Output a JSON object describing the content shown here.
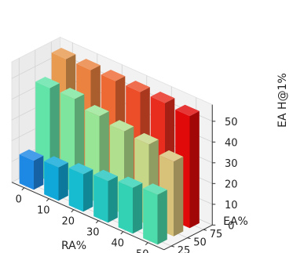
{
  "chart_data": {
    "type": "bar3d",
    "title": "",
    "xlabel": "RA%",
    "ylabel": "EA%",
    "zlabel": "EA H@1%",
    "x_ticks": [
      "0",
      "10",
      "20",
      "30",
      "40",
      "50"
    ],
    "y_ticks": [
      "25",
      "50",
      "75"
    ],
    "z_ticks": [
      "0",
      "10",
      "20",
      "30",
      "40",
      "50"
    ],
    "zlim": [
      0,
      58
    ],
    "grid": true,
    "series": [
      {
        "ea": 25,
        "x": [
          0,
          10,
          20,
          30,
          40,
          50
        ],
        "values": [
          14,
          16,
          18,
          20,
          22,
          24
        ],
        "colors": [
          "#1e88e5",
          "#10a8d8",
          "#18bcd0",
          "#26c6c0",
          "#34d2b4",
          "#4ddcab"
        ]
      },
      {
        "ea": 50,
        "x": [
          0,
          10,
          20,
          30,
          40,
          50
        ],
        "values": [
          45,
          45,
          42,
          40,
          39,
          36
        ],
        "colors": [
          "#62e3a8",
          "#7de59e",
          "#98e596",
          "#b0e08e",
          "#c6d888",
          "#d8c27a"
        ]
      },
      {
        "ea": 75,
        "x": [
          0,
          10,
          20,
          30,
          40,
          50
        ],
        "values": [
          55,
          55,
          55,
          55,
          55,
          54
        ],
        "colors": [
          "#e89a50",
          "#ec8240",
          "#ee6a34",
          "#ec4e2a",
          "#e82c1e",
          "#e00a0a"
        ]
      }
    ]
  }
}
